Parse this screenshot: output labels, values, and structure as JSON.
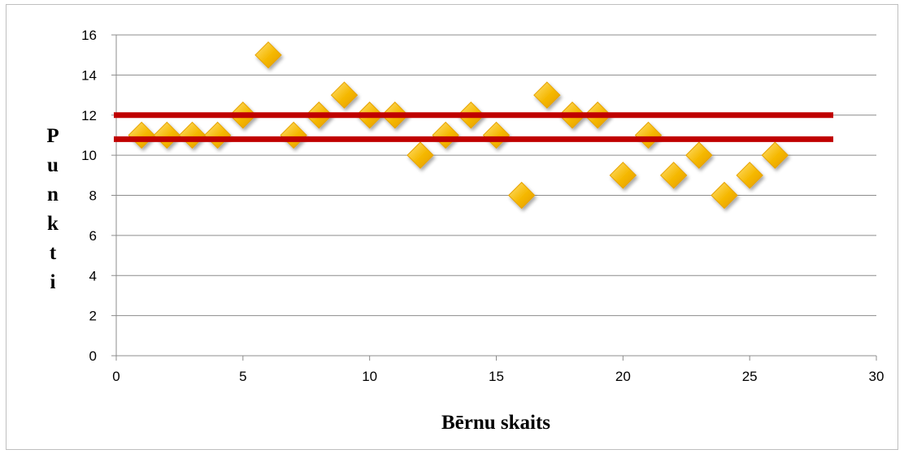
{
  "chart_data": {
    "type": "scatter",
    "title": "",
    "xlabel": "Bērnu skaits",
    "ylabel": "Punkti",
    "xlim": [
      0,
      30
    ],
    "ylim": [
      0,
      16
    ],
    "x_ticks": [
      "0",
      "5",
      "10",
      "15",
      "20",
      "25",
      "30"
    ],
    "y_ticks": [
      "0",
      "2",
      "4",
      "6",
      "8",
      "10",
      "12",
      "14",
      "16"
    ],
    "grid": "horizontal",
    "legend": "none",
    "series": [
      {
        "marker": "diamond",
        "color": "#f5b800",
        "points": [
          [
            1,
            11
          ],
          [
            2,
            11
          ],
          [
            3,
            11
          ],
          [
            4,
            11
          ],
          [
            5,
            12
          ],
          [
            6,
            15
          ],
          [
            7,
            11
          ],
          [
            8,
            12
          ],
          [
            9,
            13
          ],
          [
            10,
            12
          ],
          [
            11,
            12
          ],
          [
            12,
            10
          ],
          [
            13,
            11
          ],
          [
            14,
            12
          ],
          [
            15,
            11
          ],
          [
            16,
            8
          ],
          [
            17,
            13
          ],
          [
            18,
            12
          ],
          [
            19,
            12
          ],
          [
            20,
            9
          ],
          [
            21,
            11
          ],
          [
            22,
            9
          ],
          [
            23,
            10
          ],
          [
            24,
            8
          ],
          [
            25,
            9
          ],
          [
            26,
            10
          ]
        ]
      }
    ],
    "reference_lines": [
      {
        "y": 12,
        "x_range": [
          0,
          28.3
        ],
        "color": "#c00000"
      },
      {
        "y": 10.8,
        "x_range": [
          0,
          28.3
        ],
        "color": "#c00000"
      }
    ]
  }
}
